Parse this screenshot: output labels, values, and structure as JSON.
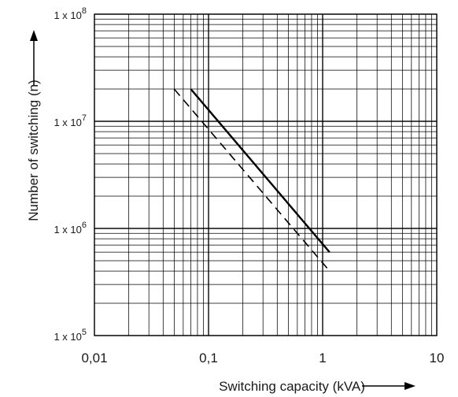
{
  "chart_data": {
    "type": "line",
    "xlabel": "Switching capacity (kVA)",
    "ylabel": "Number of switching (n)",
    "xscale": "log",
    "yscale": "log",
    "xlim": [
      0.01,
      10
    ],
    "ylim": [
      100000,
      100000000
    ],
    "x_ticks": [
      0.01,
      0.1,
      1,
      10
    ],
    "x_tick_labels": [
      "0,01",
      "0,1",
      "1",
      "10"
    ],
    "y_ticks": [
      100000,
      1000000,
      10000000,
      100000000
    ],
    "y_tick_labels": [
      {
        "prefix": "1 x 10",
        "exponent": "5"
      },
      {
        "prefix": "1 x 10",
        "exponent": "6"
      },
      {
        "prefix": "1 x 10",
        "exponent": "7"
      },
      {
        "prefix": "1 x 10",
        "exponent": "8"
      }
    ],
    "grid": true,
    "series": [
      {
        "style": "solid",
        "x": [
          0.07,
          1.15
        ],
        "y": [
          20000000,
          600000
        ]
      },
      {
        "style": "dashed",
        "x": [
          0.05,
          1.15
        ],
        "y": [
          20000000,
          400000
        ]
      }
    ]
  }
}
